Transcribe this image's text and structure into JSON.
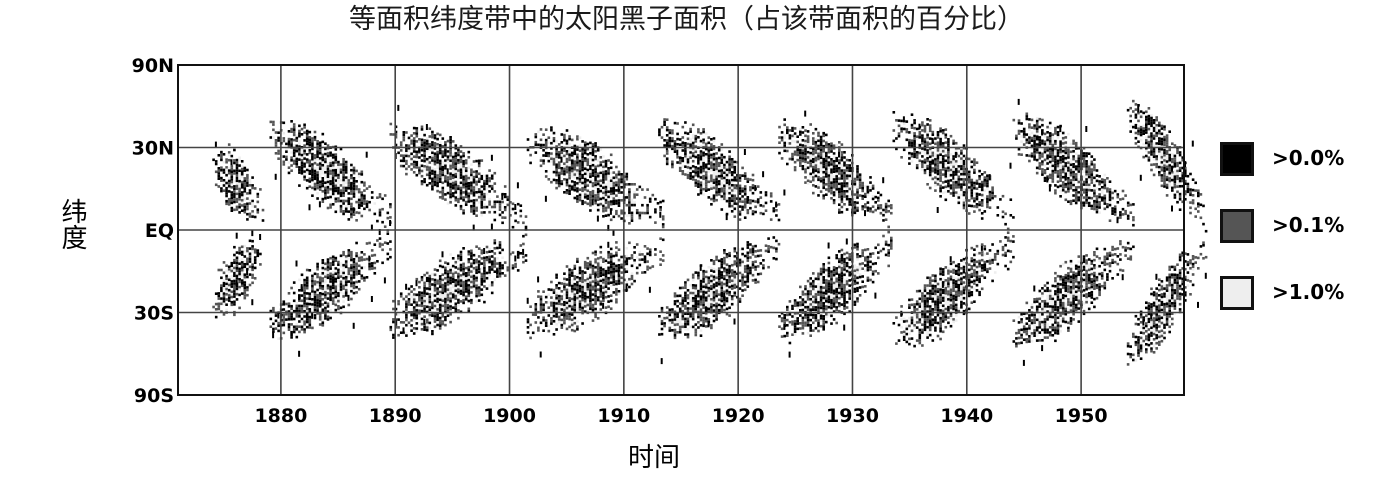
{
  "chart_data": {
    "type": "heatmap",
    "title": "等面积纬度带中的太阳黑子面积（占该带面积的百分比）",
    "xlabel": "时间",
    "ylabel": "纬度",
    "x_ticks": [
      "1880",
      "1890",
      "1900",
      "1910",
      "1920",
      "1930",
      "1940",
      "1950"
    ],
    "x_tick_values": [
      1880,
      1890,
      1900,
      1910,
      1920,
      1930,
      1940,
      1950
    ],
    "y_ticks": [
      "90N",
      "30N",
      "EQ",
      "30S",
      "90S"
    ],
    "y_tick_values": [
      90,
      30,
      0,
      -30,
      -90
    ],
    "xlim": [
      1871,
      1959
    ],
    "ylim": [
      -90,
      90
    ],
    "y_scale": "sine-latitude (equal-area bands)",
    "grid": true,
    "legend_position": "right",
    "legend": [
      {
        "label": ">0.0%",
        "color": "#000000",
        "threshold": 0.0
      },
      {
        "label": ">0.1%",
        "color": "#555555",
        "threshold": 0.1
      },
      {
        "label": ">1.0%",
        "color": "#eeeeee",
        "threshold": 1.0
      }
    ],
    "cycles": [
      {
        "start": 1874.0,
        "end": 1878.5,
        "lat_start": 24,
        "lat_end": 7
      },
      {
        "start": 1879.0,
        "end": 1889.5,
        "lat_start": 35,
        "lat_end": 5
      },
      {
        "start": 1889.5,
        "end": 1901.5,
        "lat_start": 33,
        "lat_end": 5
      },
      {
        "start": 1901.5,
        "end": 1913.5,
        "lat_start": 32,
        "lat_end": 5
      },
      {
        "start": 1913.0,
        "end": 1923.5,
        "lat_start": 35,
        "lat_end": 5
      },
      {
        "start": 1923.5,
        "end": 1933.5,
        "lat_start": 35,
        "lat_end": 5
      },
      {
        "start": 1933.5,
        "end": 1944.0,
        "lat_start": 38,
        "lat_end": 5
      },
      {
        "start": 1944.0,
        "end": 1954.5,
        "lat_start": 38,
        "lat_end": 5
      },
      {
        "start": 1954.0,
        "end": 1961.0,
        "lat_start": 45,
        "lat_end": 5
      }
    ]
  }
}
